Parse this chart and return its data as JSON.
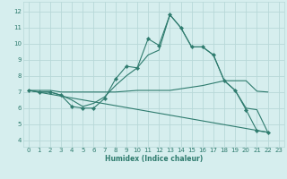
{
  "xlabel": "Humidex (Indice chaleur)",
  "background_color": "#d6eeee",
  "grid_color": "#b8d8d8",
  "line_color": "#2e7b6e",
  "x_ticks": [
    0,
    1,
    2,
    3,
    4,
    5,
    6,
    7,
    8,
    9,
    10,
    11,
    12,
    13,
    14,
    15,
    16,
    17,
    18,
    19,
    20,
    21,
    22,
    23
  ],
  "y_ticks": [
    4,
    5,
    6,
    7,
    8,
    9,
    10,
    11,
    12
  ],
  "ylim": [
    3.6,
    12.6
  ],
  "xlim": [
    -0.5,
    23.5
  ],
  "line0": {
    "x": [
      0,
      1,
      2,
      3,
      4,
      5,
      6,
      7,
      8,
      9,
      10,
      11,
      12,
      13,
      14,
      15,
      16,
      17,
      18,
      19,
      20,
      21,
      22
    ],
    "y": [
      7.1,
      7.0,
      7.0,
      6.8,
      6.1,
      6.0,
      6.0,
      6.6,
      7.8,
      8.6,
      8.5,
      10.3,
      9.9,
      11.8,
      11.0,
      9.8,
      9.8,
      9.3,
      7.7,
      7.1,
      5.9,
      4.6,
      4.5
    ]
  },
  "line1": {
    "x": [
      0,
      1,
      2,
      3,
      4,
      5,
      6,
      7,
      8,
      9,
      10,
      11,
      12,
      13,
      14,
      15,
      16,
      17,
      18,
      19,
      20,
      21,
      22
    ],
    "y": [
      7.1,
      7.1,
      7.1,
      7.0,
      7.0,
      7.0,
      7.0,
      7.0,
      7.0,
      7.05,
      7.1,
      7.1,
      7.1,
      7.1,
      7.2,
      7.3,
      7.4,
      7.55,
      7.7,
      7.7,
      7.7,
      7.05,
      7.0
    ]
  },
  "line2": {
    "x": [
      0,
      22
    ],
    "y": [
      7.1,
      4.5
    ]
  },
  "line3": {
    "x": [
      0,
      1,
      2,
      3,
      4,
      5,
      6,
      7,
      8,
      9,
      10,
      11,
      12,
      13,
      14,
      15,
      16,
      17,
      18,
      19,
      20,
      21,
      22
    ],
    "y": [
      7.1,
      7.0,
      7.0,
      6.8,
      6.5,
      6.1,
      6.3,
      6.7,
      7.4,
      8.0,
      8.5,
      9.3,
      9.6,
      11.8,
      11.0,
      9.8,
      9.8,
      9.3,
      7.7,
      7.1,
      6.0,
      5.9,
      4.5
    ]
  }
}
